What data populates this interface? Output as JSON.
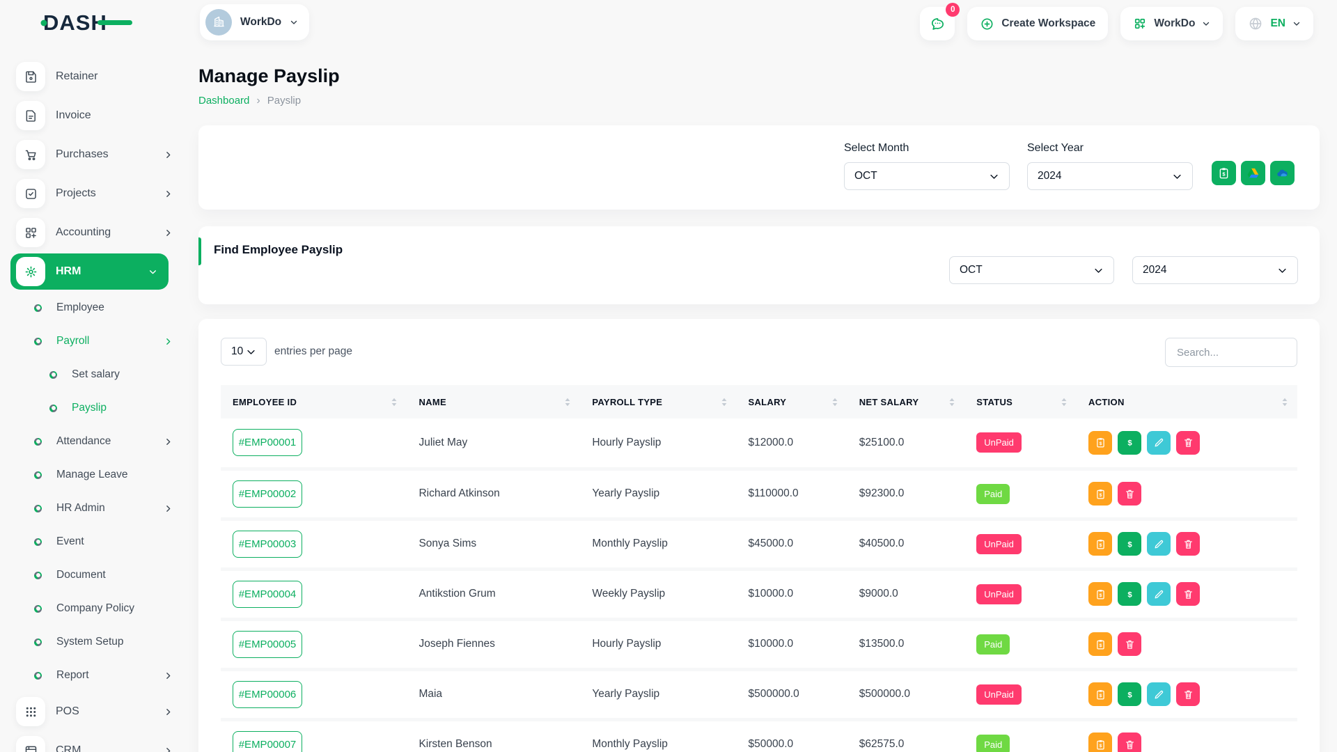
{
  "brand": {
    "logo_text": "DASH"
  },
  "topbar": {
    "workspace_pill": {
      "label": "WorkDo"
    },
    "messages": {
      "badge_count": "0"
    },
    "create_workspace": {
      "label": "Create Workspace"
    },
    "workspace_switcher": {
      "label": "WorkDo"
    },
    "language": {
      "label": "EN"
    }
  },
  "page": {
    "title": "Manage Payslip",
    "breadcrumb": {
      "root": "Dashboard",
      "separator": "›",
      "current": "Payslip"
    }
  },
  "filter_card": {
    "month_label": "Select Month",
    "month_value": "OCT",
    "year_label": "Select Year",
    "year_value": "2024",
    "export_buttons": [
      {
        "name": "bulk-payslip",
        "icon": "clipboard-dollar-icon",
        "color": "#0caf60"
      },
      {
        "name": "google-drive-export",
        "icon": "google-drive-icon",
        "color": "#0caf60"
      },
      {
        "name": "onedrive-export",
        "icon": "onedrive-icon",
        "color": "#0caf60"
      }
    ]
  },
  "find_card": {
    "title": "Find Employee Payslip",
    "month_value": "OCT",
    "year_value": "2024"
  },
  "table_card": {
    "page_size_value": "10",
    "entries_label": "entries per page",
    "search_placeholder": "Search...",
    "columns": [
      "EMPLOYEE ID",
      "NAME",
      "PAYROLL TYPE",
      "SALARY",
      "NET SALARY",
      "STATUS",
      "ACTION"
    ],
    "status_colors": {
      "Paid": "#6fd943",
      "UnPaid": "#ff3a6e"
    },
    "action_colors": {
      "payslip": "#ffa21d",
      "pay": "#0caf60",
      "edit": "#3ec9d6",
      "delete": "#ff3a6e"
    },
    "rows": [
      {
        "id": "#EMP00001",
        "name": "Juliet May",
        "payroll_type": "Hourly Payslip",
        "salary": "$12000.0",
        "net_salary": "$25100.0",
        "status": "UnPaid",
        "actions": [
          "payslip",
          "pay",
          "edit",
          "delete"
        ]
      },
      {
        "id": "#EMP00002",
        "name": "Richard Atkinson",
        "payroll_type": "Yearly Payslip",
        "salary": "$110000.0",
        "net_salary": "$92300.0",
        "status": "Paid",
        "actions": [
          "payslip",
          "delete"
        ]
      },
      {
        "id": "#EMP00003",
        "name": "Sonya Sims",
        "payroll_type": "Monthly Payslip",
        "salary": "$45000.0",
        "net_salary": "$40500.0",
        "status": "UnPaid",
        "actions": [
          "payslip",
          "pay",
          "edit",
          "delete"
        ]
      },
      {
        "id": "#EMP00004",
        "name": "Antikstion Grum",
        "payroll_type": "Weekly Payslip",
        "salary": "$10000.0",
        "net_salary": "$9000.0",
        "status": "UnPaid",
        "actions": [
          "payslip",
          "pay",
          "edit",
          "delete"
        ]
      },
      {
        "id": "#EMP00005",
        "name": "Joseph Fiennes",
        "payroll_type": "Hourly Payslip",
        "salary": "$10000.0",
        "net_salary": "$13500.0",
        "status": "Paid",
        "actions": [
          "payslip",
          "delete"
        ]
      },
      {
        "id": "#EMP00006",
        "name": "Maia",
        "payroll_type": "Yearly Payslip",
        "salary": "$500000.0",
        "net_salary": "$500000.0",
        "status": "UnPaid",
        "actions": [
          "payslip",
          "pay",
          "edit",
          "delete"
        ]
      },
      {
        "id": "#EMP00007",
        "name": "Kirsten Benson",
        "payroll_type": "Monthly Payslip",
        "salary": "$50000.0",
        "net_salary": "$62575.0",
        "status": "Paid",
        "actions": [
          "payslip",
          "delete"
        ]
      }
    ]
  },
  "sidebar": {
    "items": [
      {
        "type": "top",
        "icon": "save",
        "label": "Retainer"
      },
      {
        "type": "top",
        "icon": "invoice",
        "label": "Invoice"
      },
      {
        "type": "top",
        "icon": "cart",
        "label": "Purchases",
        "chevron": "right"
      },
      {
        "type": "top",
        "icon": "projects",
        "label": "Projects",
        "chevron": "right"
      },
      {
        "type": "top",
        "icon": "accounting",
        "label": "Accounting",
        "chevron": "right"
      },
      {
        "type": "top",
        "icon": "hrm",
        "label": "HRM",
        "chevron": "down",
        "active": true
      },
      {
        "type": "sub",
        "label": "Employee"
      },
      {
        "type": "sub",
        "label": "Payroll",
        "chevron": "right",
        "active": true
      },
      {
        "type": "subsub",
        "label": "Set salary"
      },
      {
        "type": "subsub",
        "label": "Payslip",
        "active": true
      },
      {
        "type": "sub",
        "label": "Attendance",
        "chevron": "right"
      },
      {
        "type": "sub",
        "label": "Manage Leave"
      },
      {
        "type": "sub",
        "label": "HR Admin",
        "chevron": "right"
      },
      {
        "type": "sub",
        "label": "Event"
      },
      {
        "type": "sub",
        "label": "Document"
      },
      {
        "type": "sub",
        "label": "Company Policy"
      },
      {
        "type": "sub",
        "label": "System Setup"
      },
      {
        "type": "sub",
        "label": "Report",
        "chevron": "right"
      },
      {
        "type": "top",
        "icon": "pos",
        "label": "POS",
        "chevron": "right"
      },
      {
        "type": "top",
        "icon": "crm",
        "label": "CRM",
        "chevron": "right"
      }
    ]
  },
  "colors": {
    "brand_green": "#0caf60",
    "danger_pink": "#ff3a6e",
    "paid_green": "#6fd943",
    "warning_orange": "#ffa21d",
    "info_teal": "#3ec9d6"
  }
}
